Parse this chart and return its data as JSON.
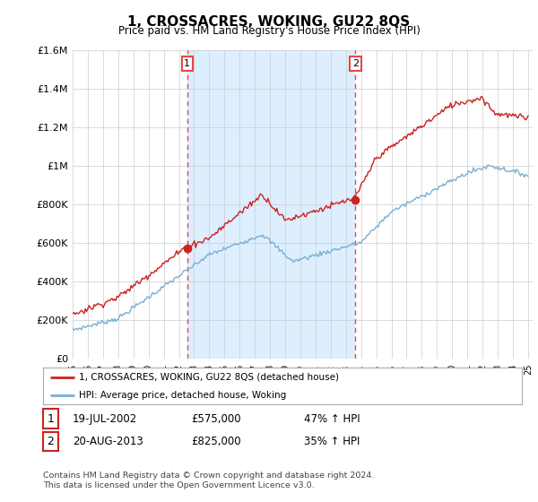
{
  "title": "1, CROSSACRES, WOKING, GU22 8QS",
  "subtitle": "Price paid vs. HM Land Registry's House Price Index (HPI)",
  "ylim": [
    0,
    1600000
  ],
  "yticks": [
    0,
    200000,
    400000,
    600000,
    800000,
    1000000,
    1200000,
    1400000,
    1600000
  ],
  "ytick_labels": [
    "£0",
    "£200K",
    "£400K",
    "£600K",
    "£800K",
    "£1M",
    "£1.2M",
    "£1.4M",
    "£1.6M"
  ],
  "x_start_year": 1995,
  "x_end_year": 2025,
  "sale1_year": 2002.55,
  "sale1_price": 575000,
  "sale2_year": 2013.63,
  "sale2_price": 825000,
  "hpi_line_color": "#7aafd4",
  "price_line_color": "#cc2222",
  "vline_color": "#ee4444",
  "shade_color": "#ddeeff",
  "legend_label1": "1, CROSSACRES, WOKING, GU22 8QS (detached house)",
  "legend_label2": "HPI: Average price, detached house, Woking",
  "table_row1": [
    "1",
    "19-JUL-2002",
    "£575,000",
    "47% ↑ HPI"
  ],
  "table_row2": [
    "2",
    "20-AUG-2013",
    "£825,000",
    "35% ↑ HPI"
  ],
  "footnote": "Contains HM Land Registry data © Crown copyright and database right 2024.\nThis data is licensed under the Open Government Licence v3.0.",
  "background_color": "#ffffff",
  "grid_color": "#cccccc"
}
